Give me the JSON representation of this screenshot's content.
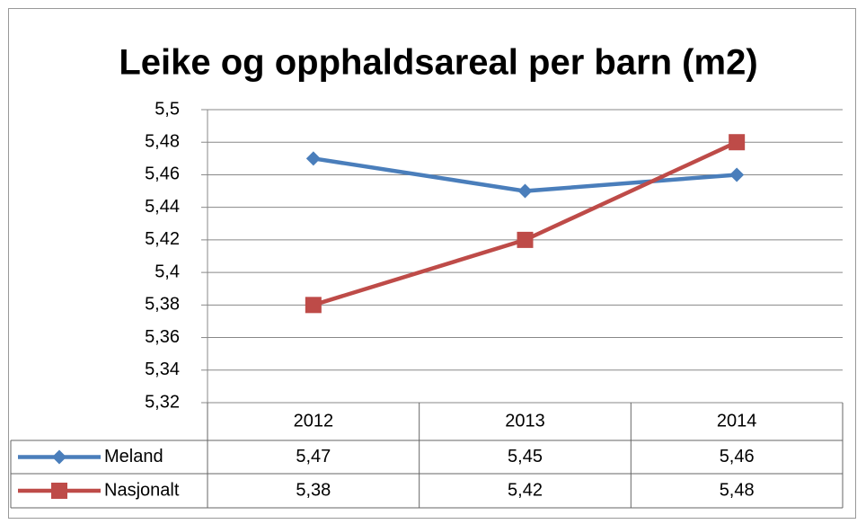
{
  "chart_data": {
    "type": "line",
    "title": "Leike og opphaldsareal per barn (m2)",
    "categories": [
      "2012",
      "2013",
      "2014"
    ],
    "series": [
      {
        "name": "Meland",
        "color": "#4a7ebb",
        "marker": "diamond",
        "values": [
          5.47,
          5.45,
          5.46
        ],
        "value_labels": [
          "5,47",
          "5,45",
          "5,46"
        ]
      },
      {
        "name": "Nasjonalt",
        "color": "#be4b48",
        "marker": "square",
        "values": [
          5.38,
          5.42,
          5.48
        ],
        "value_labels": [
          "5,38",
          "5,42",
          "5,48"
        ]
      }
    ],
    "ylim": [
      5.32,
      5.5
    ],
    "yticks": [
      {
        "value": 5.32,
        "label": "5,32"
      },
      {
        "value": 5.34,
        "label": "5,34"
      },
      {
        "value": 5.36,
        "label": "5,36"
      },
      {
        "value": 5.38,
        "label": "5,38"
      },
      {
        "value": 5.4,
        "label": "5,4"
      },
      {
        "value": 5.42,
        "label": "5,42"
      },
      {
        "value": 5.44,
        "label": "5,44"
      },
      {
        "value": 5.46,
        "label": "5,46"
      },
      {
        "value": 5.48,
        "label": "5,48"
      },
      {
        "value": 5.5,
        "label": "5,5"
      }
    ],
    "grid": true,
    "data_table": true
  }
}
